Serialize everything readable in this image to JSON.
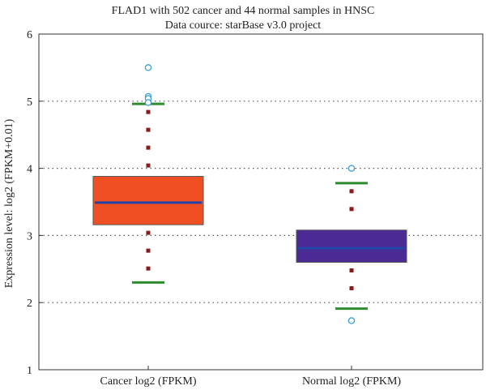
{
  "chart_data": {
    "type": "box",
    "title": "FLAD1 with 502 cancer and 44 normal samples in HNSC",
    "subtitle": "Data cource: starBase v3.0 project",
    "ylabel": "Expression level: log2 (FPKM+0.01)",
    "xlabel": "",
    "ylim": [
      1,
      6
    ],
    "yticks": [
      1,
      2,
      3,
      4,
      5,
      6
    ],
    "grid": "horizontal-dotted",
    "categories": [
      "Cancer log2 (FPKM)",
      "Normal log2 (FPKM)"
    ],
    "boxes": [
      {
        "category": "Cancer log2 (FPKM)",
        "whisker_low": 2.3,
        "q1": 3.16,
        "median": 3.49,
        "q3": 3.88,
        "whisker_high": 4.96,
        "outliers": [
          5.5,
          5.07,
          5.04,
          4.98
        ],
        "color": "#f04e23"
      },
      {
        "category": "Normal log2 (FPKM)",
        "whisker_low": 1.91,
        "q1": 2.6,
        "median": 2.81,
        "q3": 3.08,
        "whisker_high": 3.78,
        "outliers": [
          4.0,
          1.73
        ],
        "color": "#4b2b93"
      }
    ],
    "median_color": "#2246a8",
    "whisker_cap_color": "#2e8b2e",
    "whisker_line_color": "#8b1a1a",
    "outlier_color": "#3aa0d8"
  }
}
